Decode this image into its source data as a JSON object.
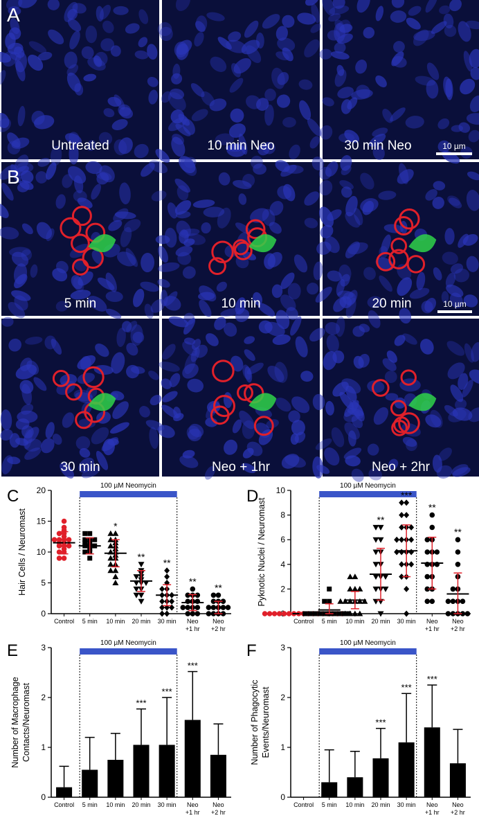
{
  "panels": {
    "A": {
      "letter": "A",
      "images": [
        {
          "caption": "Untreated"
        },
        {
          "caption": "10 min Neo"
        },
        {
          "caption": "30 min Neo",
          "scalebar": "10 µm"
        }
      ]
    },
    "B": {
      "letter": "B",
      "images": [
        {
          "caption": "5 min"
        },
        {
          "caption": "10 min"
        },
        {
          "caption": "20 min",
          "scalebar": "10 µm"
        },
        {
          "caption": "30 min"
        },
        {
          "caption": "Neo + 1hr"
        },
        {
          "caption": "Neo + 2hr"
        }
      ]
    }
  },
  "colors": {
    "nuclei_blue": "#2a35b8",
    "hair_cell_red": "#e0202a",
    "macrophage_green": "#2fd24a",
    "bar_blue": "#3a55c8",
    "control_red": "#e0202a"
  },
  "chart_data": [
    {
      "panel": "C",
      "type": "scatter",
      "ylabel": "Hair Cells / Neuromast",
      "ylim": [
        0,
        20
      ],
      "yticks": [
        "0",
        "5",
        "10",
        "15",
        "20"
      ],
      "categories": [
        "Control",
        "5 min",
        "10 min",
        "20 min",
        "30 min",
        "Neo\n+1 hr",
        "Neo\n+2 hr"
      ],
      "treatment_label": "100 µM Neomycin",
      "means": [
        11.5,
        11,
        9.8,
        5.3,
        3,
        1.8,
        1
      ],
      "sds": [
        1.8,
        1.3,
        2.2,
        1.7,
        1.7,
        1.3,
        1
      ],
      "significance": [
        "",
        "",
        "*",
        "**",
        "**",
        "**",
        "**"
      ],
      "points": [
        [
          9,
          9,
          10,
          10,
          10.5,
          11,
          11,
          11,
          11.5,
          11.5,
          12,
          12,
          12,
          12,
          12.5,
          13,
          13,
          13.5,
          14,
          15
        ],
        [
          9,
          10,
          10,
          10.5,
          11,
          11,
          11,
          11.5,
          11.5,
          12,
          12,
          12,
          13,
          13
        ],
        [
          5,
          6,
          7,
          7,
          8,
          8,
          9,
          9,
          9.5,
          10,
          10,
          10.5,
          11,
          11,
          11.5,
          12,
          12,
          13,
          13
        ],
        [
          2,
          3,
          3,
          4,
          4,
          5,
          5,
          5,
          5.5,
          6,
          6,
          6.5,
          7,
          8
        ],
        [
          0,
          0,
          1,
          1,
          1,
          2,
          2,
          2,
          3,
          3,
          3,
          4,
          4,
          5,
          6,
          7
        ],
        [
          0,
          0,
          0,
          1,
          1,
          1,
          1,
          2,
          2,
          2,
          3,
          3,
          3,
          4
        ],
        [
          0,
          0,
          0,
          0,
          1,
          1,
          1,
          1,
          1,
          2,
          2,
          2,
          3,
          3
        ]
      ]
    },
    {
      "panel": "D",
      "type": "scatter",
      "ylabel": "Pyknotic Nuclei / Neuromast",
      "ylim": [
        0,
        10
      ],
      "yticks": [
        "0",
        "2",
        "4",
        "6",
        "8",
        "10"
      ],
      "categories": [
        "Control",
        "5 min",
        "10 min",
        "20 min",
        "30 min",
        "Neo\n+1 hr",
        "Neo\n+2 hr"
      ],
      "treatment_label": "100 µM Neomycin",
      "means": [
        0,
        0.3,
        1.1,
        3.2,
        5.1,
        4.1,
        1.6
      ],
      "sds": [
        0.1,
        0.5,
        0.7,
        2.1,
        2.1,
        2.1,
        1.7
      ],
      "significance": [
        "",
        "",
        "",
        "**",
        "***",
        "**",
        "**"
      ],
      "points": [
        [
          0,
          0,
          0,
          0,
          0,
          0,
          0,
          0,
          0,
          0,
          0,
          0,
          0,
          0,
          0,
          0,
          0
        ],
        [
          0,
          0,
          0,
          0,
          0,
          0,
          0,
          0,
          0,
          0,
          1,
          1,
          2
        ],
        [
          0,
          0,
          0,
          0,
          1,
          1,
          1,
          1,
          1,
          1,
          2,
          2,
          2,
          3,
          3
        ],
        [
          0,
          1,
          1,
          2,
          2,
          2,
          3,
          3,
          3,
          4,
          4,
          5,
          5,
          6,
          6,
          7,
          7
        ],
        [
          0,
          2,
          3,
          3,
          4,
          4,
          4,
          5,
          5,
          5,
          5,
          6,
          6,
          6,
          6,
          7,
          7,
          7,
          8,
          8,
          9,
          9
        ],
        [
          1,
          1,
          2,
          2,
          3,
          3,
          4,
          4,
          4,
          5,
          5,
          5,
          6,
          6,
          7,
          8
        ],
        [
          0,
          0,
          0,
          0,
          0,
          1,
          1,
          1,
          1,
          2,
          2,
          3,
          4,
          5,
          6
        ]
      ]
    },
    {
      "panel": "E",
      "type": "bar",
      "ylabel": "Number of Macrophage Contacts/Neuromast",
      "ylabel_lines": [
        "Number of Macrophage",
        "Contacts/Neuromast"
      ],
      "ylim": [
        0,
        3
      ],
      "yticks": [
        "0",
        "1",
        "2",
        "3"
      ],
      "categories": [
        "Control",
        "5 min",
        "10 min",
        "20 min",
        "30 min",
        "Neo\n+1 hr",
        "Neo\n+2 hr"
      ],
      "treatment_label": "100 µM Neomycin",
      "values": [
        0.2,
        0.55,
        0.75,
        1.05,
        1.05,
        1.55,
        0.85
      ],
      "errors": [
        0.42,
        0.65,
        0.53,
        0.72,
        0.95,
        0.97,
        0.62
      ],
      "significance": [
        "",
        "",
        "",
        "***",
        "***",
        "***",
        ""
      ]
    },
    {
      "panel": "F",
      "type": "bar",
      "ylabel": "Number of Phagocytic Events/Neuromast",
      "ylabel_lines": [
        "Number of Phagocytic",
        "Events/Neuromast"
      ],
      "ylim": [
        0,
        3
      ],
      "yticks": [
        "0",
        "1",
        "2",
        "3"
      ],
      "categories": [
        "Control",
        "5 min",
        "10 min",
        "20 min",
        "30 min",
        "Neo\n+1 hr",
        "Neo\n+2 hr"
      ],
      "treatment_label": "100 µM Neomycin",
      "values": [
        0,
        0.3,
        0.4,
        0.78,
        1.1,
        1.4,
        0.68
      ],
      "errors": [
        0,
        0.65,
        0.52,
        0.6,
        0.98,
        0.85,
        0.68
      ],
      "significance": [
        "",
        "",
        "",
        "***",
        "***",
        "***",
        ""
      ]
    }
  ]
}
